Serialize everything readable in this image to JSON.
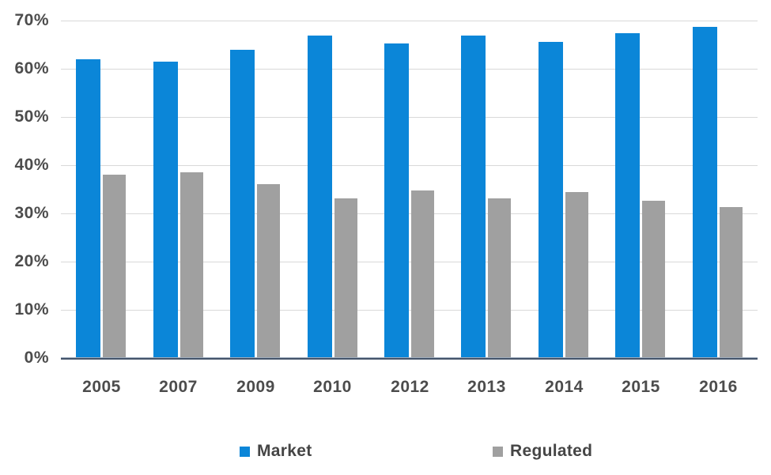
{
  "chart_data": {
    "type": "bar",
    "title": "",
    "xlabel": "",
    "ylabel": "",
    "categories": [
      "2005",
      "2007",
      "2009",
      "2010",
      "2012",
      "2013",
      "2014",
      "2015",
      "2016"
    ],
    "series": [
      {
        "name": "Market",
        "color": "#0b86d8",
        "values": [
          62.0,
          61.5,
          64.0,
          66.9,
          65.2,
          66.9,
          65.5,
          67.4,
          68.7
        ]
      },
      {
        "name": "Regulated",
        "color": "#a0a0a0",
        "values": [
          38.0,
          38.5,
          36.0,
          33.1,
          34.8,
          33.1,
          34.5,
          32.6,
          31.3
        ]
      }
    ],
    "ylim": [
      0,
      70
    ],
    "ytick_step": 10,
    "ytick_labels": [
      "0%",
      "10%",
      "20%",
      "30%",
      "40%",
      "50%",
      "60%",
      "70%"
    ],
    "grid": true,
    "legend_position": "bottom",
    "colors": {
      "gridline": "#d9d9d9",
      "axis_line": "#44546a",
      "tick_text": "#4c4c4c",
      "background": "#ffffff"
    }
  }
}
